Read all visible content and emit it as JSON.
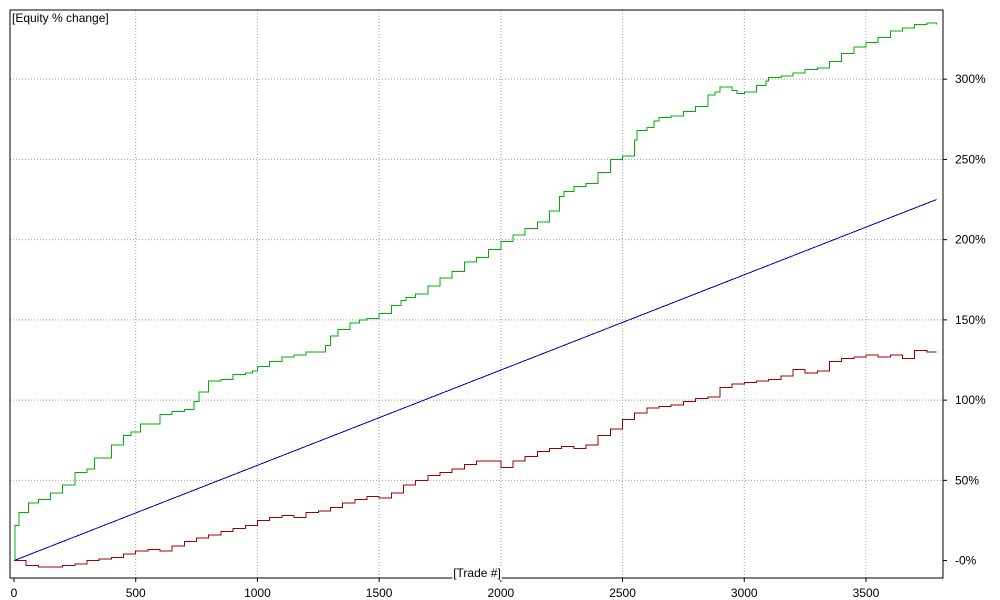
{
  "chart_data": {
    "type": "line",
    "title": "[Equity % change]",
    "xlabel": "[Trade #]",
    "ylabel": "",
    "xlim": [
      0,
      3800
    ],
    "ylim": [
      -4,
      340
    ],
    "x_ticks": [
      0,
      500,
      1000,
      1500,
      2000,
      2500,
      3000,
      3500
    ],
    "x_tick_labels": [
      "0",
      "500",
      "1000",
      "1500",
      "2000",
      "2500",
      "3000",
      "3500"
    ],
    "y_ticks": [
      0,
      50,
      100,
      150,
      200,
      250,
      300
    ],
    "y_tick_labels": [
      "-0%",
      "50%",
      "100%",
      "150%",
      "200%",
      "250%",
      "300%"
    ],
    "grid": true,
    "series": [
      {
        "color": "#00b000",
        "x": [
          0,
          5,
          20,
          60,
          100,
          150,
          200,
          250,
          300,
          330,
          400,
          450,
          480,
          520,
          600,
          650,
          700,
          740,
          760,
          800,
          850,
          900,
          950,
          980,
          1000,
          1050,
          1100,
          1150,
          1200,
          1280,
          1300,
          1330,
          1380,
          1420,
          1450,
          1500,
          1550,
          1590,
          1610,
          1650,
          1700,
          1750,
          1800,
          1850,
          1900,
          1950,
          2000,
          2050,
          2100,
          2150,
          2200,
          2240,
          2260,
          2300,
          2350,
          2400,
          2450,
          2500,
          2550,
          2560,
          2600,
          2630,
          2650,
          2700,
          2750,
          2800,
          2850,
          2880,
          2900,
          2950,
          2970,
          3000,
          3050,
          3090,
          3100,
          3150,
          3200,
          3250,
          3300,
          3350,
          3400,
          3450,
          3500,
          3550,
          3600,
          3650,
          3700,
          3750,
          3790
        ],
        "values": [
          0,
          22,
          30,
          36,
          38,
          42,
          47,
          55,
          57,
          64,
          72,
          78,
          80,
          85,
          91,
          93,
          94,
          99,
          105,
          112,
          113,
          116,
          117,
          118,
          121,
          124,
          127,
          128,
          130,
          134,
          140,
          144,
          148,
          150,
          151,
          154,
          159,
          162,
          164,
          166,
          171,
          176,
          180,
          186,
          189,
          194,
          199,
          203,
          207,
          211,
          218,
          227,
          230,
          233,
          235,
          242,
          250,
          252,
          262,
          268,
          270,
          274,
          276,
          277,
          280,
          283,
          290,
          292,
          295,
          293,
          291,
          292,
          296,
          299,
          301,
          302,
          304,
          306,
          307,
          311,
          316,
          320,
          323,
          326,
          330,
          332,
          334,
          335,
          334
        ]
      },
      {
        "color": "#0000b4",
        "x": [
          0,
          3790
        ],
        "values": [
          0,
          225
        ]
      },
      {
        "color": "#a00000",
        "x": [
          0,
          50,
          100,
          150,
          200,
          250,
          300,
          350,
          400,
          450,
          500,
          550,
          600,
          650,
          700,
          750,
          800,
          850,
          900,
          950,
          1000,
          1050,
          1100,
          1150,
          1200,
          1250,
          1300,
          1350,
          1400,
          1450,
          1500,
          1550,
          1600,
          1650,
          1700,
          1750,
          1800,
          1850,
          1900,
          1950,
          2000,
          2050,
          2100,
          2150,
          2200,
          2250,
          2300,
          2350,
          2400,
          2450,
          2500,
          2550,
          2600,
          2650,
          2700,
          2750,
          2800,
          2850,
          2900,
          2950,
          3000,
          3050,
          3100,
          3150,
          3200,
          3250,
          3300,
          3350,
          3400,
          3450,
          3500,
          3550,
          3600,
          3650,
          3700,
          3750,
          3790
        ],
        "values": [
          0,
          -3,
          -4,
          -4,
          -3,
          -2,
          0,
          1,
          2,
          4,
          6,
          7,
          6,
          9,
          12,
          14,
          16,
          18,
          20,
          22,
          25,
          27,
          28,
          27,
          30,
          31,
          33,
          36,
          38,
          40,
          39,
          42,
          47,
          50,
          53,
          55,
          57,
          60,
          62,
          62,
          58,
          62,
          65,
          68,
          70,
          71,
          70,
          72,
          78,
          82,
          88,
          92,
          95,
          96,
          97,
          99,
          101,
          102,
          108,
          110,
          111,
          112,
          113,
          115,
          119,
          117,
          118,
          124,
          126,
          127,
          128,
          127,
          128,
          126,
          131,
          130,
          130
        ]
      }
    ]
  }
}
